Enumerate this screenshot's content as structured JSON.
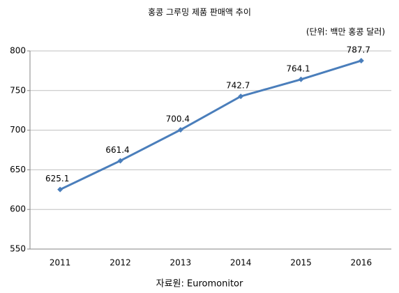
{
  "chart_data": {
    "type": "line",
    "title": "홍콩 그루밍 제품 판매액 추이",
    "subtitle": "(단위: 백만 홍콩 달러)",
    "source": "자료원: Euromonitor",
    "categories": [
      "2011",
      "2012",
      "2013",
      "2014",
      "2015",
      "2016"
    ],
    "values": [
      625.1,
      661.4,
      700.4,
      742.7,
      764.1,
      787.7
    ],
    "color": "#4a7ebb",
    "ylim": [
      550,
      800
    ],
    "yticks": [
      550,
      600,
      650,
      700,
      750,
      800
    ],
    "grid": true
  }
}
